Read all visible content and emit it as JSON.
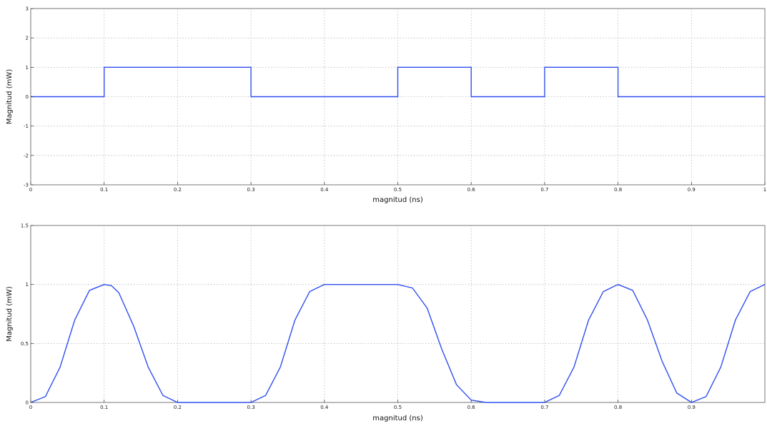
{
  "chart_data": [
    {
      "type": "line",
      "title": "",
      "xlabel": "magnitud (ns)",
      "ylabel": "Magnitud (mW)",
      "xlim": [
        0,
        1
      ],
      "ylim": [
        -3,
        3
      ],
      "grid": true,
      "line_color": "#2f4ff0",
      "xticks": [
        0,
        0.1,
        0.2,
        0.3,
        0.4,
        0.5,
        0.6,
        0.7,
        0.8,
        0.9,
        1
      ],
      "xtick_labels": [
        "0",
        "0.1",
        "0.2",
        "0.3",
        "0.4",
        "0.5",
        "0.6",
        "0.7",
        "0.8",
        "0.9",
        "1"
      ],
      "yticks": [
        -3,
        -2,
        -1,
        0,
        1,
        2,
        3
      ],
      "ytick_labels": [
        "-3",
        "-2",
        "-1",
        "0",
        "1",
        "2",
        "3"
      ],
      "series": [
        {
          "x": [
            0,
            0.1,
            0.1,
            0.3,
            0.3,
            0.5,
            0.5,
            0.6,
            0.6,
            0.7,
            0.7,
            0.8,
            0.8,
            1
          ],
          "y": [
            0,
            0,
            1,
            1,
            0,
            0,
            1,
            1,
            0,
            0,
            1,
            1,
            0,
            0
          ]
        }
      ]
    },
    {
      "type": "line",
      "title": "",
      "xlabel": "magnitud (ns)",
      "ylabel": "Magnitud (mW)",
      "xlim": [
        0,
        1
      ],
      "ylim": [
        0,
        1.5
      ],
      "grid": true,
      "line_color": "#2f4ff0",
      "xticks": [
        0,
        0.1,
        0.2,
        0.3,
        0.4,
        0.5,
        0.6,
        0.7,
        0.8,
        0.9
      ],
      "xtick_labels": [
        "0",
        "0.1",
        "0.2",
        "0.3",
        "0.4",
        "0.5",
        "0.6",
        "0.7",
        "0.8",
        "0.9"
      ],
      "yticks": [
        0,
        0.5,
        1,
        1.5
      ],
      "ytick_labels": [
        "0",
        "0.5",
        "1",
        "1.5"
      ],
      "series": [
        {
          "x": [
            0,
            0.02,
            0.04,
            0.06,
            0.08,
            0.1,
            0.11,
            0.12,
            0.14,
            0.16,
            0.18,
            0.2,
            0.22,
            0.25,
            0.28,
            0.3,
            0.32,
            0.34,
            0.36,
            0.38,
            0.4,
            0.43,
            0.46,
            0.5,
            0.52,
            0.54,
            0.56,
            0.58,
            0.6,
            0.62,
            0.65,
            0.68,
            0.7,
            0.72,
            0.74,
            0.76,
            0.78,
            0.8,
            0.82,
            0.84,
            0.86,
            0.88,
            0.9,
            0.92,
            0.94,
            0.96,
            0.98,
            1.0
          ],
          "y": [
            0,
            0.05,
            0.3,
            0.7,
            0.95,
            1.0,
            0.99,
            0.93,
            0.65,
            0.3,
            0.06,
            0.0,
            0.0,
            0.0,
            0.0,
            0.0,
            0.06,
            0.3,
            0.7,
            0.94,
            1.0,
            1.0,
            1.0,
            1.0,
            0.97,
            0.8,
            0.45,
            0.15,
            0.02,
            0.0,
            0.0,
            0.0,
            0.0,
            0.06,
            0.3,
            0.7,
            0.94,
            1.0,
            0.95,
            0.7,
            0.35,
            0.08,
            0.0,
            0.05,
            0.3,
            0.7,
            0.94,
            1.0
          ]
        }
      ]
    }
  ]
}
